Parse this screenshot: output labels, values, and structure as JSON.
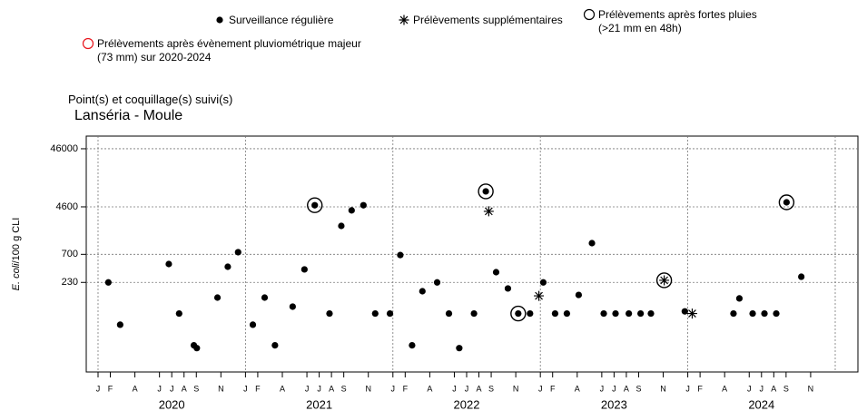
{
  "chart_data": {
    "type": "scatter",
    "heading": "Point(s) et coquillage(s) suivi(s)",
    "title": "Lanséria - Moule",
    "ylabel_italic": "E. coli",
    "ylabel": "/100 g CLI",
    "log_y": true,
    "grid": true,
    "ylim": [
      6.6,
      76000
    ],
    "yticks": [
      230,
      700,
      4600,
      46000
    ],
    "xlim": [
      2019.92,
      2025.154
    ],
    "xgrid": [
      2020,
      2021,
      2022,
      2023,
      2024,
      2025
    ],
    "xticks": [
      {
        "value": 2020.0,
        "label": "J"
      },
      {
        "value": 2020.0833,
        "label": "F"
      },
      {
        "value": 2020.25,
        "label": "A"
      },
      {
        "value": 2020.4167,
        "label": "J"
      },
      {
        "value": 2020.5,
        "label": "J"
      },
      {
        "value": 2020.5833,
        "label": "A"
      },
      {
        "value": 2020.6667,
        "label": "S"
      },
      {
        "value": 2020.8333,
        "label": "N"
      },
      {
        "value": 2021.0,
        "label": "J"
      },
      {
        "value": 2021.0833,
        "label": "F"
      },
      {
        "value": 2021.25,
        "label": "A"
      },
      {
        "value": 2021.4167,
        "label": "J"
      },
      {
        "value": 2021.5,
        "label": "J"
      },
      {
        "value": 2021.5833,
        "label": "A"
      },
      {
        "value": 2021.6667,
        "label": "S"
      },
      {
        "value": 2021.8333,
        "label": "N"
      },
      {
        "value": 2022.0,
        "label": "J"
      },
      {
        "value": 2022.0833,
        "label": "F"
      },
      {
        "value": 2022.25,
        "label": "A"
      },
      {
        "value": 2022.4167,
        "label": "J"
      },
      {
        "value": 2022.5,
        "label": "J"
      },
      {
        "value": 2022.5833,
        "label": "A"
      },
      {
        "value": 2022.6667,
        "label": "S"
      },
      {
        "value": 2022.8333,
        "label": "N"
      },
      {
        "value": 2023.0,
        "label": "J"
      },
      {
        "value": 2023.0833,
        "label": "F"
      },
      {
        "value": 2023.25,
        "label": "A"
      },
      {
        "value": 2023.4167,
        "label": "J"
      },
      {
        "value": 2023.5,
        "label": "J"
      },
      {
        "value": 2023.5833,
        "label": "A"
      },
      {
        "value": 2023.6667,
        "label": "S"
      },
      {
        "value": 2023.8333,
        "label": "N"
      },
      {
        "value": 2024.0,
        "label": "J"
      },
      {
        "value": 2024.0833,
        "label": "F"
      },
      {
        "value": 2024.25,
        "label": "A"
      },
      {
        "value": 2024.4167,
        "label": "J"
      },
      {
        "value": 2024.5,
        "label": "J"
      },
      {
        "value": 2024.5833,
        "label": "A"
      },
      {
        "value": 2024.6667,
        "label": "S"
      },
      {
        "value": 2024.8333,
        "label": "N"
      }
    ],
    "year_labels": [
      {
        "value": 2020.5,
        "label": "2020"
      },
      {
        "value": 2021.5,
        "label": "2021"
      },
      {
        "value": 2022.5,
        "label": "2022"
      },
      {
        "value": 2023.5,
        "label": "2023"
      },
      {
        "value": 2024.5,
        "label": "2024"
      }
    ],
    "series": [
      {
        "name": "Surveillance régulière",
        "marker": "dot",
        "color": "#000000",
        "x": [
          2020.07,
          2020.15,
          2020.48,
          2020.55,
          2020.65,
          2020.67,
          2020.81,
          2020.88,
          2020.95,
          2021.05,
          2021.13,
          2021.2,
          2021.32,
          2021.4,
          2021.47,
          2021.57,
          2021.65,
          2021.72,
          2021.8,
          2021.88,
          2021.98,
          2022.05,
          2022.13,
          2022.2,
          2022.3,
          2022.38,
          2022.45,
          2022.55,
          2022.63,
          2022.7,
          2022.78,
          2022.85,
          2022.93,
          2023.02,
          2023.1,
          2023.18,
          2023.26,
          2023.35,
          2023.43,
          2023.51,
          2023.6,
          2023.68,
          2023.75,
          2023.98,
          2024.31,
          2024.35,
          2024.44,
          2024.52,
          2024.6,
          2024.67,
          2024.77
        ],
        "values": [
          230,
          43,
          477,
          67,
          19,
          17,
          126,
          428,
          762,
          43,
          126,
          19,
          88,
          385,
          4900,
          67,
          2160,
          4000,
          4900,
          67,
          67,
          680,
          19,
          162,
          230,
          67,
          17,
          67,
          8490,
          345,
          181,
          67,
          67,
          230,
          67,
          67,
          140,
          1090,
          67,
          67,
          67,
          67,
          67,
          73,
          67,
          122,
          67,
          67,
          67,
          5500,
          288
        ]
      },
      {
        "name": "Prélèvements supplémentaires",
        "marker": "asterisk",
        "color": "#000000",
        "x": [
          2022.65,
          2022.99,
          2023.84,
          2024.03
        ],
        "values": [
          3850,
          135,
          250,
          67
        ]
      },
      {
        "name": "Prélèvements après fortes pluies (>21 mm en 48h)",
        "marker": "circle",
        "color": "#000000",
        "x": [
          2021.47,
          2022.63,
          2022.85,
          2023.84,
          2024.67
        ],
        "values": [
          4900,
          8490,
          67,
          250,
          5500
        ]
      },
      {
        "name": "Prélèvements après évènement pluviométrique majeur (73 mm) sur 2020-2024",
        "marker": "circle",
        "color": "#e8141c",
        "x": [],
        "values": []
      }
    ]
  }
}
